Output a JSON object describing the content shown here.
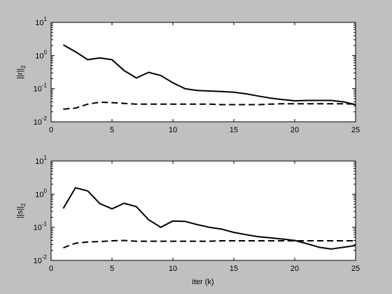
{
  "figure": {
    "background": "#c0c0c0",
    "axes_background": "#ffffff",
    "line_color": "#000000"
  },
  "chart_data": [
    {
      "type": "line",
      "title": "",
      "xlabel": "",
      "ylabel_base": "||r||",
      "ylabel_sub": "2",
      "yscale": "log",
      "xlim": [
        0,
        25
      ],
      "ylim": [
        0.01,
        10
      ],
      "xticks": [
        0,
        5,
        10,
        15,
        20,
        25
      ],
      "yticks": [
        0.01,
        0.1,
        1,
        10
      ],
      "ytick_exponents": [
        "-2",
        "-1",
        "0",
        "1"
      ],
      "grid": false,
      "series": [
        {
          "style": "solid",
          "x": [
            1,
            2,
            3,
            4,
            5,
            6,
            7,
            8,
            9,
            10,
            11,
            12,
            13,
            14,
            15,
            16,
            17,
            18,
            19,
            20,
            21,
            22,
            23,
            24,
            25
          ],
          "y": [
            2.1,
            1.3,
            0.75,
            0.85,
            0.75,
            0.35,
            0.21,
            0.31,
            0.25,
            0.15,
            0.1,
            0.088,
            0.085,
            0.082,
            0.078,
            0.07,
            0.06,
            0.052,
            0.047,
            0.043,
            0.044,
            0.044,
            0.044,
            0.04,
            0.033
          ]
        },
        {
          "style": "dashed",
          "x": [
            1,
            2,
            3,
            4,
            5,
            6,
            7,
            8,
            9,
            10,
            11,
            12,
            13,
            14,
            15,
            16,
            17,
            18,
            19,
            20,
            21,
            22,
            23,
            24,
            25
          ],
          "y": [
            0.024,
            0.026,
            0.034,
            0.039,
            0.038,
            0.036,
            0.034,
            0.034,
            0.034,
            0.034,
            0.034,
            0.034,
            0.034,
            0.033,
            0.033,
            0.033,
            0.033,
            0.034,
            0.035,
            0.035,
            0.035,
            0.035,
            0.035,
            0.035,
            0.034
          ]
        }
      ]
    },
    {
      "type": "line",
      "title": "",
      "xlabel": "iter (k)",
      "ylabel_base": "||s||",
      "ylabel_sub": "2",
      "yscale": "log",
      "xlim": [
        0,
        25
      ],
      "ylim": [
        0.01,
        10
      ],
      "xticks": [
        0,
        5,
        10,
        15,
        20,
        25
      ],
      "yticks": [
        0.01,
        0.1,
        1,
        10
      ],
      "ytick_exponents": [
        "-2",
        "-1",
        "0",
        "1"
      ],
      "grid": false,
      "series": [
        {
          "style": "solid",
          "x": [
            1,
            2,
            3,
            4,
            5,
            6,
            7,
            8,
            9,
            10,
            11,
            12,
            13,
            14,
            15,
            16,
            17,
            18,
            19,
            20,
            21,
            22,
            23,
            24,
            25
          ],
          "y": [
            0.37,
            1.55,
            1.25,
            0.52,
            0.36,
            0.53,
            0.42,
            0.17,
            0.1,
            0.155,
            0.15,
            0.12,
            0.1,
            0.088,
            0.07,
            0.06,
            0.052,
            0.048,
            0.044,
            0.04,
            0.032,
            0.025,
            0.022,
            0.025,
            0.028
          ]
        },
        {
          "style": "dashed",
          "x": [
            1,
            2,
            3,
            4,
            5,
            6,
            7,
            8,
            9,
            10,
            11,
            12,
            13,
            14,
            15,
            16,
            17,
            18,
            19,
            20,
            21,
            22,
            23,
            24,
            25
          ],
          "y": [
            0.024,
            0.033,
            0.036,
            0.037,
            0.039,
            0.04,
            0.038,
            0.038,
            0.038,
            0.038,
            0.038,
            0.038,
            0.038,
            0.039,
            0.039,
            0.039,
            0.039,
            0.039,
            0.039,
            0.039,
            0.039,
            0.039,
            0.039,
            0.039,
            0.039
          ]
        }
      ]
    }
  ]
}
